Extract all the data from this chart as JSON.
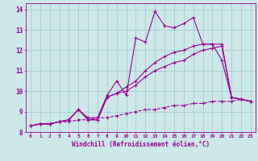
{
  "xlabel": "Windchill (Refroidissement éolien,°C)",
  "bg_color": "#cce8e8",
  "grid_color": "#aacccc",
  "line_color": "#990099",
  "xlim": [
    -0.5,
    23.5
  ],
  "ylim": [
    8.0,
    14.3
  ],
  "yticks": [
    8,
    9,
    10,
    11,
    12,
    13,
    14
  ],
  "xticks": [
    0,
    1,
    2,
    3,
    4,
    5,
    6,
    7,
    8,
    9,
    10,
    11,
    12,
    13,
    14,
    15,
    16,
    17,
    18,
    19,
    20,
    21,
    22,
    23
  ],
  "series1_x": [
    0,
    1,
    2,
    3,
    4,
    5,
    6,
    7,
    8,
    9,
    10,
    11,
    12,
    13,
    14,
    15,
    16,
    17,
    18,
    19,
    20,
    21,
    22,
    23
  ],
  "series1_y": [
    8.3,
    8.4,
    8.4,
    8.5,
    8.6,
    9.1,
    8.7,
    8.7,
    9.8,
    10.5,
    9.8,
    12.6,
    12.4,
    13.9,
    13.2,
    13.1,
    13.3,
    13.6,
    12.3,
    12.3,
    11.5,
    9.7,
    9.6,
    9.5
  ],
  "series2_x": [
    0,
    1,
    2,
    3,
    4,
    5,
    6,
    7,
    8,
    9,
    10,
    11,
    12,
    13,
    14,
    15,
    16,
    17,
    18,
    19,
    20,
    21,
    22,
    23
  ],
  "series2_y": [
    8.3,
    8.4,
    8.4,
    8.5,
    8.6,
    9.1,
    8.6,
    8.6,
    9.7,
    9.9,
    10.2,
    10.5,
    11.0,
    11.4,
    11.7,
    11.9,
    12.0,
    12.2,
    12.3,
    12.3,
    12.3,
    9.7,
    9.6,
    9.5
  ],
  "series3_x": [
    0,
    1,
    2,
    3,
    4,
    5,
    6,
    7,
    8,
    9,
    10,
    11,
    12,
    13,
    14,
    15,
    16,
    17,
    18,
    19,
    20,
    21,
    22,
    23
  ],
  "series3_y": [
    8.3,
    8.4,
    8.4,
    8.5,
    8.6,
    9.1,
    8.6,
    8.6,
    9.7,
    9.9,
    10.0,
    10.3,
    10.7,
    11.0,
    11.2,
    11.4,
    11.5,
    11.8,
    12.0,
    12.1,
    12.2,
    9.7,
    9.6,
    9.5
  ],
  "series4_x": [
    0,
    1,
    2,
    3,
    4,
    5,
    6,
    7,
    8,
    9,
    10,
    11,
    12,
    13,
    14,
    15,
    16,
    17,
    18,
    19,
    20,
    21,
    22,
    23
  ],
  "series4_y": [
    8.3,
    8.4,
    8.4,
    8.5,
    8.5,
    8.6,
    8.6,
    8.7,
    8.7,
    8.8,
    8.9,
    9.0,
    9.1,
    9.1,
    9.2,
    9.3,
    9.3,
    9.4,
    9.4,
    9.5,
    9.5,
    9.5,
    9.6,
    9.5
  ]
}
